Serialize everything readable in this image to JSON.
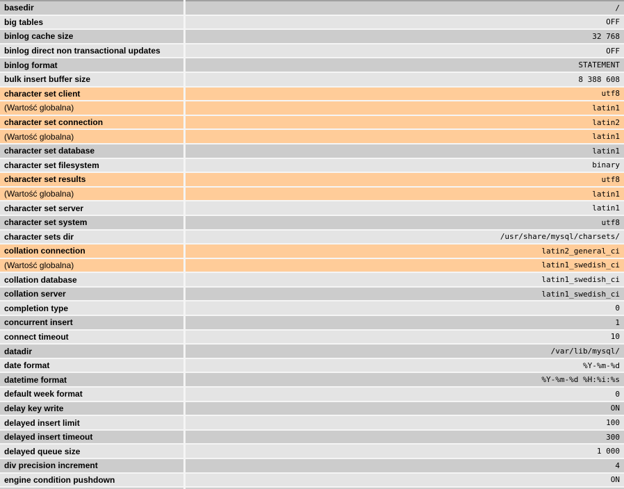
{
  "app": {
    "name": "server-variables-table",
    "global_value_label": "(Wartość globalna)"
  },
  "colors": {
    "dark": "#cccccc",
    "light": "#e4e4e4",
    "marked": "#ffcc99",
    "gap": "#f5f5f5",
    "top_border": "#9f9f9f",
    "text": "#000000"
  },
  "rows": [
    {
      "label": "basedir",
      "value": "/",
      "tone": "dark",
      "bold": true
    },
    {
      "label": "big tables",
      "value": "OFF",
      "tone": "light",
      "bold": true
    },
    {
      "label": "binlog cache size",
      "value": "32 768",
      "tone": "dark",
      "bold": true
    },
    {
      "label": "binlog direct non transactional updates",
      "value": "OFF",
      "tone": "light",
      "bold": true
    },
    {
      "label": "binlog format",
      "value": "STATEMENT",
      "tone": "dark",
      "bold": true
    },
    {
      "label": "bulk insert buffer size",
      "value": "8 388 608",
      "tone": "light",
      "bold": true
    },
    {
      "label": "character set client",
      "value": "utf8",
      "tone": "marked",
      "bold": true
    },
    {
      "label": "(Wartość globalna)",
      "value": "latin1",
      "tone": "marked",
      "bold": false
    },
    {
      "label": "character set connection",
      "value": "latin2",
      "tone": "marked",
      "bold": true
    },
    {
      "label": "(Wartość globalna)",
      "value": "latin1",
      "tone": "marked",
      "bold": false
    },
    {
      "label": "character set database",
      "value": "latin1",
      "tone": "dark",
      "bold": true
    },
    {
      "label": "character set filesystem",
      "value": "binary",
      "tone": "light",
      "bold": true
    },
    {
      "label": "character set results",
      "value": "utf8",
      "tone": "marked",
      "bold": true
    },
    {
      "label": "(Wartość globalna)",
      "value": "latin1",
      "tone": "marked",
      "bold": false
    },
    {
      "label": "character set server",
      "value": "latin1",
      "tone": "light",
      "bold": true
    },
    {
      "label": "character set system",
      "value": "utf8",
      "tone": "dark",
      "bold": true
    },
    {
      "label": "character sets dir",
      "value": "/usr/share/mysql/charsets/",
      "tone": "light",
      "bold": true
    },
    {
      "label": "collation connection",
      "value": "latin2_general_ci",
      "tone": "marked",
      "bold": true
    },
    {
      "label": "(Wartość globalna)",
      "value": "latin1_swedish_ci",
      "tone": "marked",
      "bold": false
    },
    {
      "label": "collation database",
      "value": "latin1_swedish_ci",
      "tone": "light",
      "bold": true
    },
    {
      "label": "collation server",
      "value": "latin1_swedish_ci",
      "tone": "dark",
      "bold": true
    },
    {
      "label": "completion type",
      "value": "0",
      "tone": "light",
      "bold": true
    },
    {
      "label": "concurrent insert",
      "value": "1",
      "tone": "dark",
      "bold": true
    },
    {
      "label": "connect timeout",
      "value": "10",
      "tone": "light",
      "bold": true
    },
    {
      "label": "datadir",
      "value": "/var/lib/mysql/",
      "tone": "dark",
      "bold": true
    },
    {
      "label": "date format",
      "value": "%Y-%m-%d",
      "tone": "light",
      "bold": true
    },
    {
      "label": "datetime format",
      "value": "%Y-%m-%d %H:%i:%s",
      "tone": "dark",
      "bold": true
    },
    {
      "label": "default week format",
      "value": "0",
      "tone": "light",
      "bold": true
    },
    {
      "label": "delay key write",
      "value": "ON",
      "tone": "dark",
      "bold": true
    },
    {
      "label": "delayed insert limit",
      "value": "100",
      "tone": "light",
      "bold": true
    },
    {
      "label": "delayed insert timeout",
      "value": "300",
      "tone": "dark",
      "bold": true
    },
    {
      "label": "delayed queue size",
      "value": "1 000",
      "tone": "light",
      "bold": true
    },
    {
      "label": "div precision increment",
      "value": "4",
      "tone": "dark",
      "bold": true
    },
    {
      "label": "engine condition pushdown",
      "value": "ON",
      "tone": "light",
      "bold": true
    },
    {
      "label": "",
      "value": "",
      "tone": "dark",
      "bold": true
    }
  ]
}
